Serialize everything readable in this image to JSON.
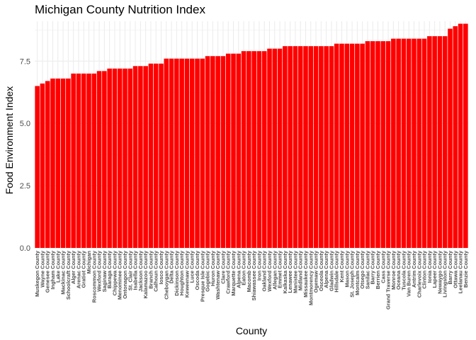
{
  "chart_data": {
    "type": "bar",
    "title": "Michigan County Nutrition Index",
    "xlabel": "County",
    "ylabel": "Food Environment Index",
    "ylim": [
      0,
      9.1
    ],
    "yticks": [
      "0.0",
      "2.5",
      "5.0",
      "7.5"
    ],
    "ytick_values": [
      0,
      2.5,
      5,
      7.5
    ],
    "grid": true,
    "bar_color": "#ff0000",
    "grid_color": "#ebebeb",
    "categories": [
      "Muskegon County",
      "Wayne County",
      "Genesee County",
      "Ingham County",
      "Lake County",
      "Mackinac County",
      "Schoolcraft County",
      "Alger County",
      "Arenac County",
      "Gratiot County",
      "Michigan",
      "Roscommon County",
      "Wexford County",
      "Saginaw County",
      "Baraga County",
      "Chippewa County",
      "Menominee County",
      "Ontonagon County",
      "St. Clair County",
      "Isabella County",
      "Jackson County",
      "Kalamazoo County",
      "Branch County",
      "Calhoun County",
      "Iosco County",
      "Cheboygan County",
      "Delta County",
      "Dickinson County",
      "Houghton County",
      "Keweenaw County",
      "Luce County",
      "Oscoda County",
      "Presque Isle County",
      "Gogebic County",
      "Huron County",
      "Washtenaw County",
      "Clare County",
      "Crawford County",
      "Marquette County",
      "Alpena County",
      "Eaton County",
      "Macomb County",
      "Shiawassee County",
      "Iron County",
      "Oakland County",
      "Wexford County",
      "Allegan County",
      "Emmet County",
      "Kalkaska County",
      "Lenawee County",
      "Manistee County",
      "Midland County",
      "Missaukee County",
      "Montmorency County",
      "Ogemaw County",
      "Osceola County",
      "Alpena County",
      "Gladwin County",
      "Hillsdale County",
      "Kent County",
      "Mason County",
      "St. Joseph County",
      "Montcalm County",
      "Otsego County",
      "Sanilac County",
      "Barry County",
      "Berrien County",
      "Cass County",
      "Grand Traverse County",
      "Monroe County",
      "Oceana County",
      "Tuscola County",
      "Van Buren County",
      "Antrim County",
      "Charlevoix County",
      "Clinton County",
      "Ionia County",
      "Lapeer County",
      "Newaygo County",
      "Livingston County",
      "Barry County",
      "Ottawa County",
      "Leelanau County",
      "Benzie County"
    ],
    "values": [
      6.5,
      6.6,
      6.7,
      6.8,
      6.8,
      6.8,
      6.8,
      7.0,
      7.0,
      7.0,
      7.0,
      7.0,
      7.1,
      7.1,
      7.2,
      7.2,
      7.2,
      7.2,
      7.2,
      7.3,
      7.3,
      7.3,
      7.4,
      7.4,
      7.4,
      7.6,
      7.6,
      7.6,
      7.6,
      7.6,
      7.6,
      7.6,
      7.6,
      7.7,
      7.7,
      7.7,
      7.7,
      7.8,
      7.8,
      7.8,
      7.9,
      7.9,
      7.9,
      7.9,
      7.9,
      8.0,
      8.0,
      8.0,
      8.1,
      8.1,
      8.1,
      8.1,
      8.1,
      8.1,
      8.1,
      8.1,
      8.1,
      8.1,
      8.2,
      8.2,
      8.2,
      8.2,
      8.2,
      8.2,
      8.3,
      8.3,
      8.3,
      8.3,
      8.3,
      8.4,
      8.4,
      8.4,
      8.4,
      8.4,
      8.4,
      8.4,
      8.5,
      8.5,
      8.5,
      8.5,
      8.8,
      8.9,
      9.0,
      9.0
    ]
  }
}
